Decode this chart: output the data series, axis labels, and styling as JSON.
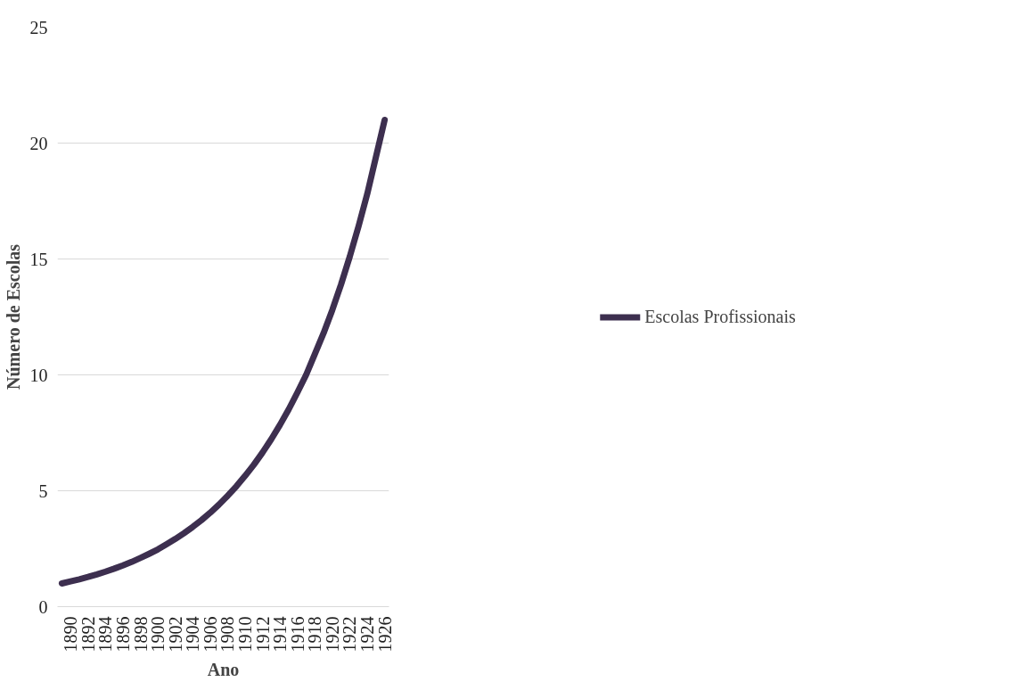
{
  "chart_data": {
    "type": "line",
    "xlabel": "Ano",
    "ylabel": "Número de Escolas",
    "x": [
      1889,
      1890,
      1891,
      1892,
      1893,
      1894,
      1895,
      1896,
      1897,
      1898,
      1899,
      1900,
      1901,
      1902,
      1903,
      1904,
      1905,
      1906,
      1907,
      1908,
      1909,
      1910,
      1911,
      1912,
      1913,
      1914,
      1915,
      1916,
      1917,
      1918,
      1919,
      1920,
      1921,
      1922,
      1923,
      1924,
      1925,
      1926
    ],
    "series": [
      {
        "name": "Escolas Profissionais",
        "color": "#3d2f4f",
        "values": [
          1.0,
          1.09,
          1.18,
          1.28,
          1.39,
          1.51,
          1.64,
          1.78,
          1.93,
          2.1,
          2.28,
          2.47,
          2.69,
          2.92,
          3.17,
          3.44,
          3.73,
          4.05,
          4.4,
          4.78,
          5.19,
          5.64,
          6.12,
          6.65,
          7.22,
          7.84,
          8.51,
          9.24,
          10.0,
          10.9,
          11.8,
          12.8,
          13.9,
          15.1,
          16.4,
          17.8,
          19.4,
          21.0
        ]
      }
    ],
    "xlim": [
      1888.5,
      1926.5
    ],
    "xticks": [
      1890,
      1892,
      1894,
      1896,
      1898,
      1900,
      1902,
      1904,
      1906,
      1908,
      1910,
      1912,
      1914,
      1916,
      1918,
      1920,
      1922,
      1924,
      1926
    ],
    "ylim": [
      0,
      25
    ],
    "yticks": [
      0,
      5,
      10,
      15,
      20,
      25
    ],
    "grid": "y",
    "legend": "right",
    "marker": "none",
    "line_style": "solid"
  }
}
